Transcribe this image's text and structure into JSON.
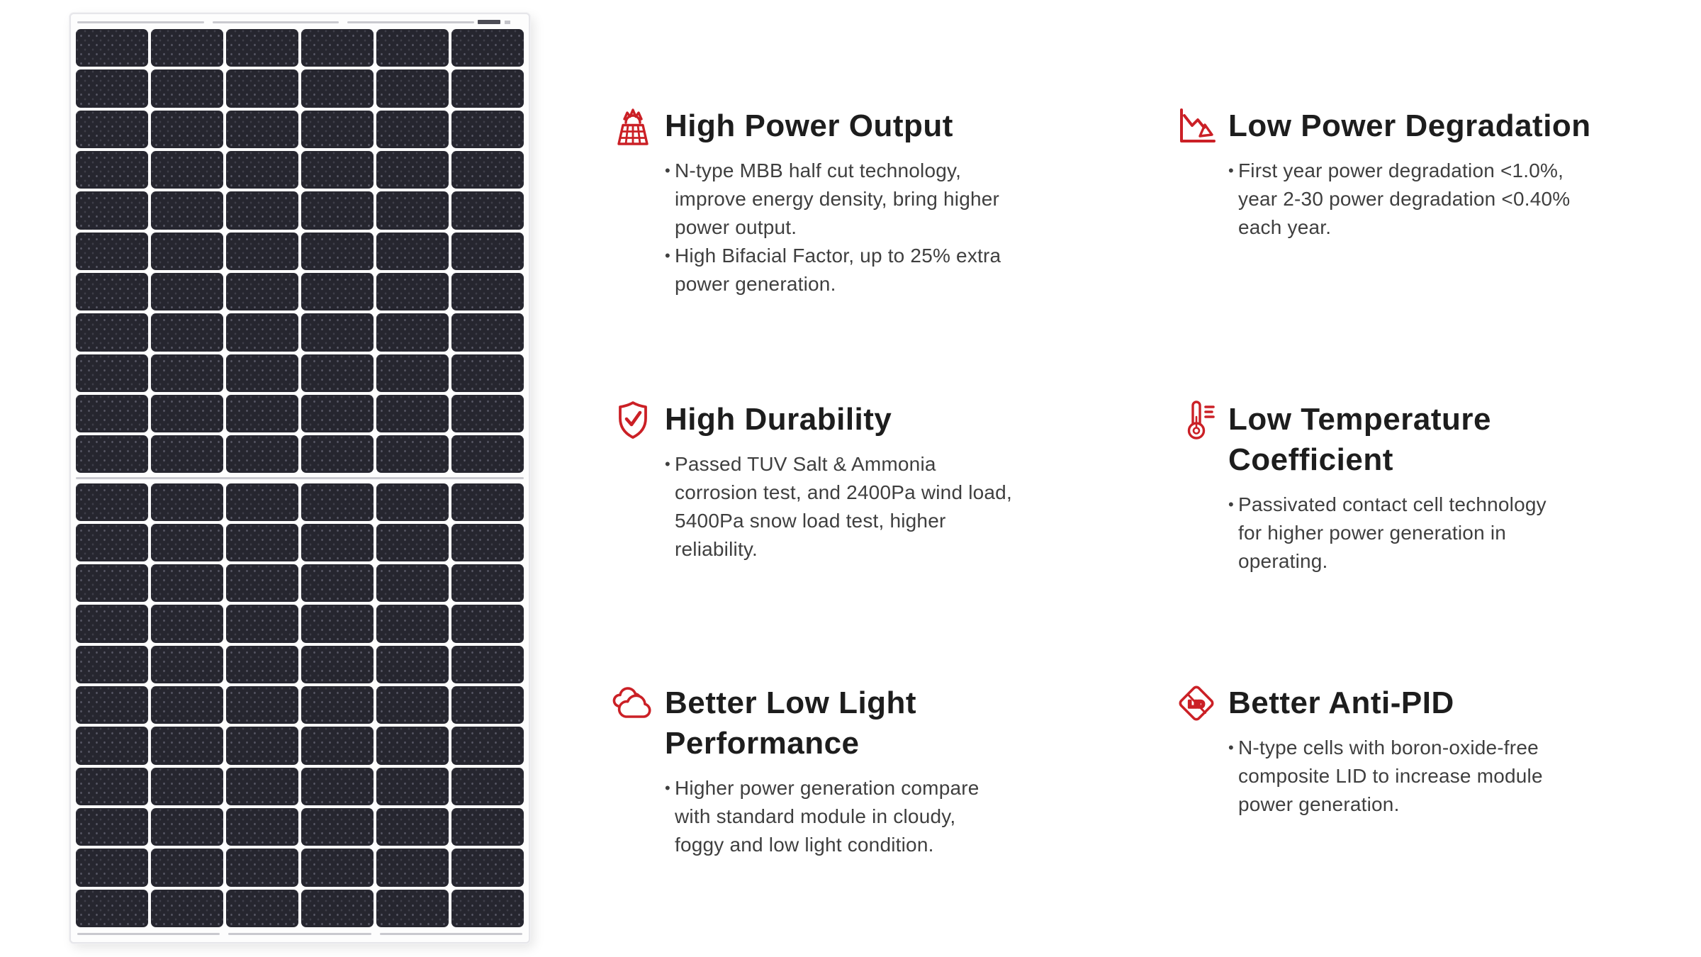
{
  "colors": {
    "accent_red": "#cb2026",
    "title_text": "#1d1d1d",
    "body_text": "#3f3f3f",
    "panel_cell": "#26262f",
    "panel_rail": "#c9c9cf"
  },
  "panel": {
    "columns": 6,
    "rows_per_half": 11,
    "halves": 2
  },
  "features": [
    {
      "icon": "solar-panel-sun-icon",
      "title": "High Power Output",
      "bullets": [
        "N-type MBB half cut technology,\nimprove energy density, bring higher\npower output.",
        "High Bifacial Factor, up to 25% extra\npower generation."
      ]
    },
    {
      "icon": "declining-chart-icon",
      "title": "Low Power Degradation",
      "bullets": [
        "First year power degradation <1.0%,\nyear 2-30 power degradation <0.40%\neach year."
      ]
    },
    {
      "icon": "shield-check-icon",
      "title": "High Durability",
      "bullets": [
        "Passed TUV Salt & Ammonia\ncorrosion test, and 2400Pa wind load,\n5400Pa snow load test, higher\nreliability."
      ]
    },
    {
      "icon": "thermometer-icon",
      "title": "Low Temperature\nCoefficient",
      "bullets": [
        "Passivated contact cell technology\nfor higher power generation in\noperating."
      ]
    },
    {
      "icon": "cloud-icon",
      "title": "Better Low Light\nPerformance",
      "bullets": [
        "Higher power generation compare\nwith standard module in cloudy,\nfoggy and low light condition."
      ]
    },
    {
      "icon": "anti-lid-diamond-icon",
      "icon_label": "LID",
      "title": "Better Anti-PID",
      "bullets": [
        "N-type cells with boron-oxide-free\ncomposite LID to increase module\npower generation."
      ]
    }
  ]
}
